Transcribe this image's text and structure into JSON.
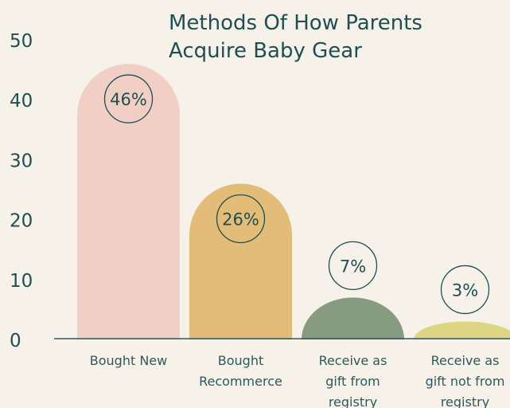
{
  "chart_data": {
    "type": "bar",
    "title": "Methods Of How Parents Acquire Baby Gear",
    "categories": [
      "Bought New",
      "Bought Recommerce",
      "Receive as gift from registry",
      "Receive as gift not from registry"
    ],
    "values": [
      46,
      26,
      7,
      3
    ],
    "value_labels": [
      "46%",
      "26%",
      "7%",
      "3%"
    ],
    "colors": [
      "#f2cfc4",
      "#e3bc77",
      "#879b80",
      "#ddd584"
    ],
    "ylim": [
      0,
      50
    ],
    "yticks": [
      0,
      10,
      20,
      30,
      40,
      50
    ],
    "grid": false
  }
}
